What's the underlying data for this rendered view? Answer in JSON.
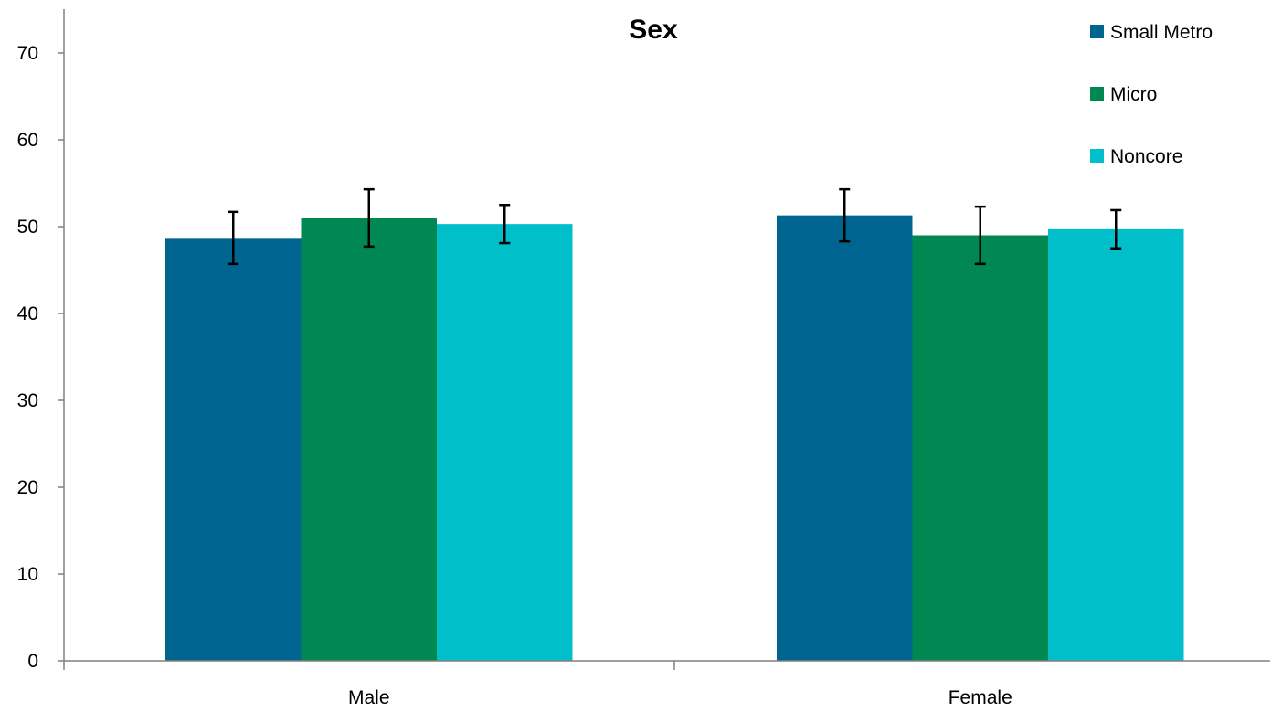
{
  "chart_data": {
    "type": "bar",
    "title": "Sex",
    "xlabel": "",
    "ylabel": "",
    "categories": [
      "Male",
      "Female"
    ],
    "ylim": [
      0,
      70
    ],
    "yticks": [
      0,
      10,
      20,
      30,
      40,
      50,
      60,
      70
    ],
    "grid": false,
    "legend_position": "top-right",
    "series": [
      {
        "name": "Small Metro",
        "color": "#006491",
        "values": [
          48.7,
          51.3
        ],
        "error_low": [
          45.7,
          48.3
        ],
        "error_high": [
          51.7,
          54.3
        ]
      },
      {
        "name": "Micro",
        "color": "#008752",
        "values": [
          51.0,
          49.0
        ],
        "error_low": [
          47.7,
          45.7
        ],
        "error_high": [
          54.3,
          52.3
        ]
      },
      {
        "name": "Noncore",
        "color": "#00BECA",
        "values": [
          50.3,
          49.7
        ],
        "error_low": [
          48.1,
          47.5
        ],
        "error_high": [
          52.5,
          51.9
        ]
      }
    ]
  }
}
